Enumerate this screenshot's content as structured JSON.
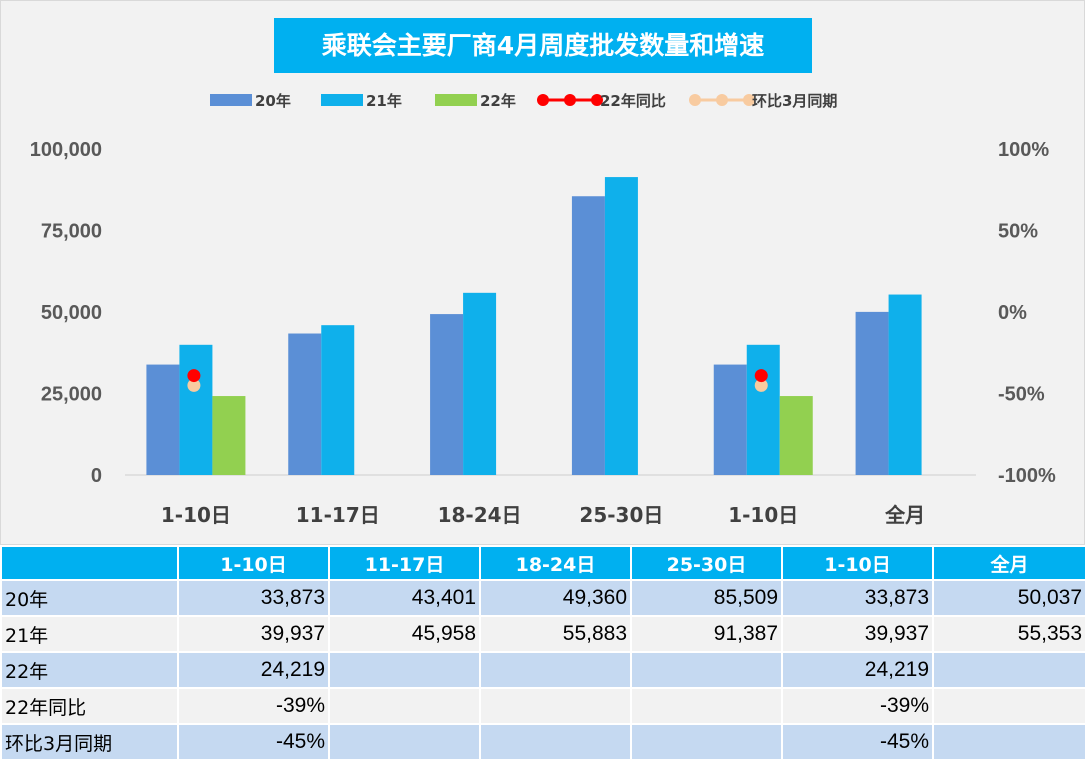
{
  "chart_data": {
    "type": "bar",
    "title": "乘联会主要厂商4月周度批发数量和增速",
    "categories": [
      "1-10日",
      "11-17日",
      "18-24日",
      "25-30日",
      "1-10日",
      "全月"
    ],
    "series": [
      {
        "name": "20年",
        "kind": "bar",
        "axis": "left",
        "color": "#5b8fd6",
        "values": [
          33873,
          43401,
          49360,
          85509,
          33873,
          50037
        ]
      },
      {
        "name": "21年",
        "kind": "bar",
        "axis": "left",
        "color": "#0fb0eb",
        "values": [
          39937,
          45958,
          55883,
          91387,
          39937,
          55353
        ]
      },
      {
        "name": "22年",
        "kind": "bar",
        "axis": "left",
        "color": "#92d050",
        "values": [
          24219,
          null,
          null,
          null,
          24219,
          null
        ]
      },
      {
        "name": "22年同比",
        "kind": "line",
        "axis": "right",
        "color": "#ff0000",
        "values": [
          -39,
          null,
          null,
          null,
          -39,
          null
        ]
      },
      {
        "name": "环比3月同期",
        "kind": "line",
        "axis": "right",
        "color": "#f8cba0",
        "values": [
          -45,
          null,
          null,
          null,
          -45,
          null
        ]
      }
    ],
    "y_left": {
      "min": 0,
      "max": 100000,
      "ticks": [
        "0",
        "25,000",
        "50,000",
        "75,000",
        "100,000"
      ]
    },
    "y_right": {
      "min": -100,
      "max": 100,
      "ticks": [
        "-100%",
        "-50%",
        "0%",
        "50%",
        "100%"
      ]
    },
    "legend_position": "top",
    "grid": false
  },
  "table": {
    "headers": [
      "1-10日",
      "11-17日",
      "18-24日",
      "25-30日",
      "1-10日",
      "全月"
    ],
    "rows": [
      {
        "label": "20年",
        "cells": [
          "33,873",
          "43,401",
          "49,360",
          "85,509",
          "33,873",
          "50,037"
        ]
      },
      {
        "label": "21年",
        "cells": [
          "39,937",
          "45,958",
          "55,883",
          "91,387",
          "39,937",
          "55,353"
        ]
      },
      {
        "label": "22年",
        "cells": [
          "24,219",
          "",
          "",
          "",
          "24,219",
          ""
        ]
      },
      {
        "label": "22年同比",
        "cells": [
          "-39%",
          "",
          "",
          "",
          "-39%",
          ""
        ]
      },
      {
        "label": "环比3月同期",
        "cells": [
          "-45%",
          "",
          "",
          "",
          "-45%",
          ""
        ]
      }
    ]
  }
}
